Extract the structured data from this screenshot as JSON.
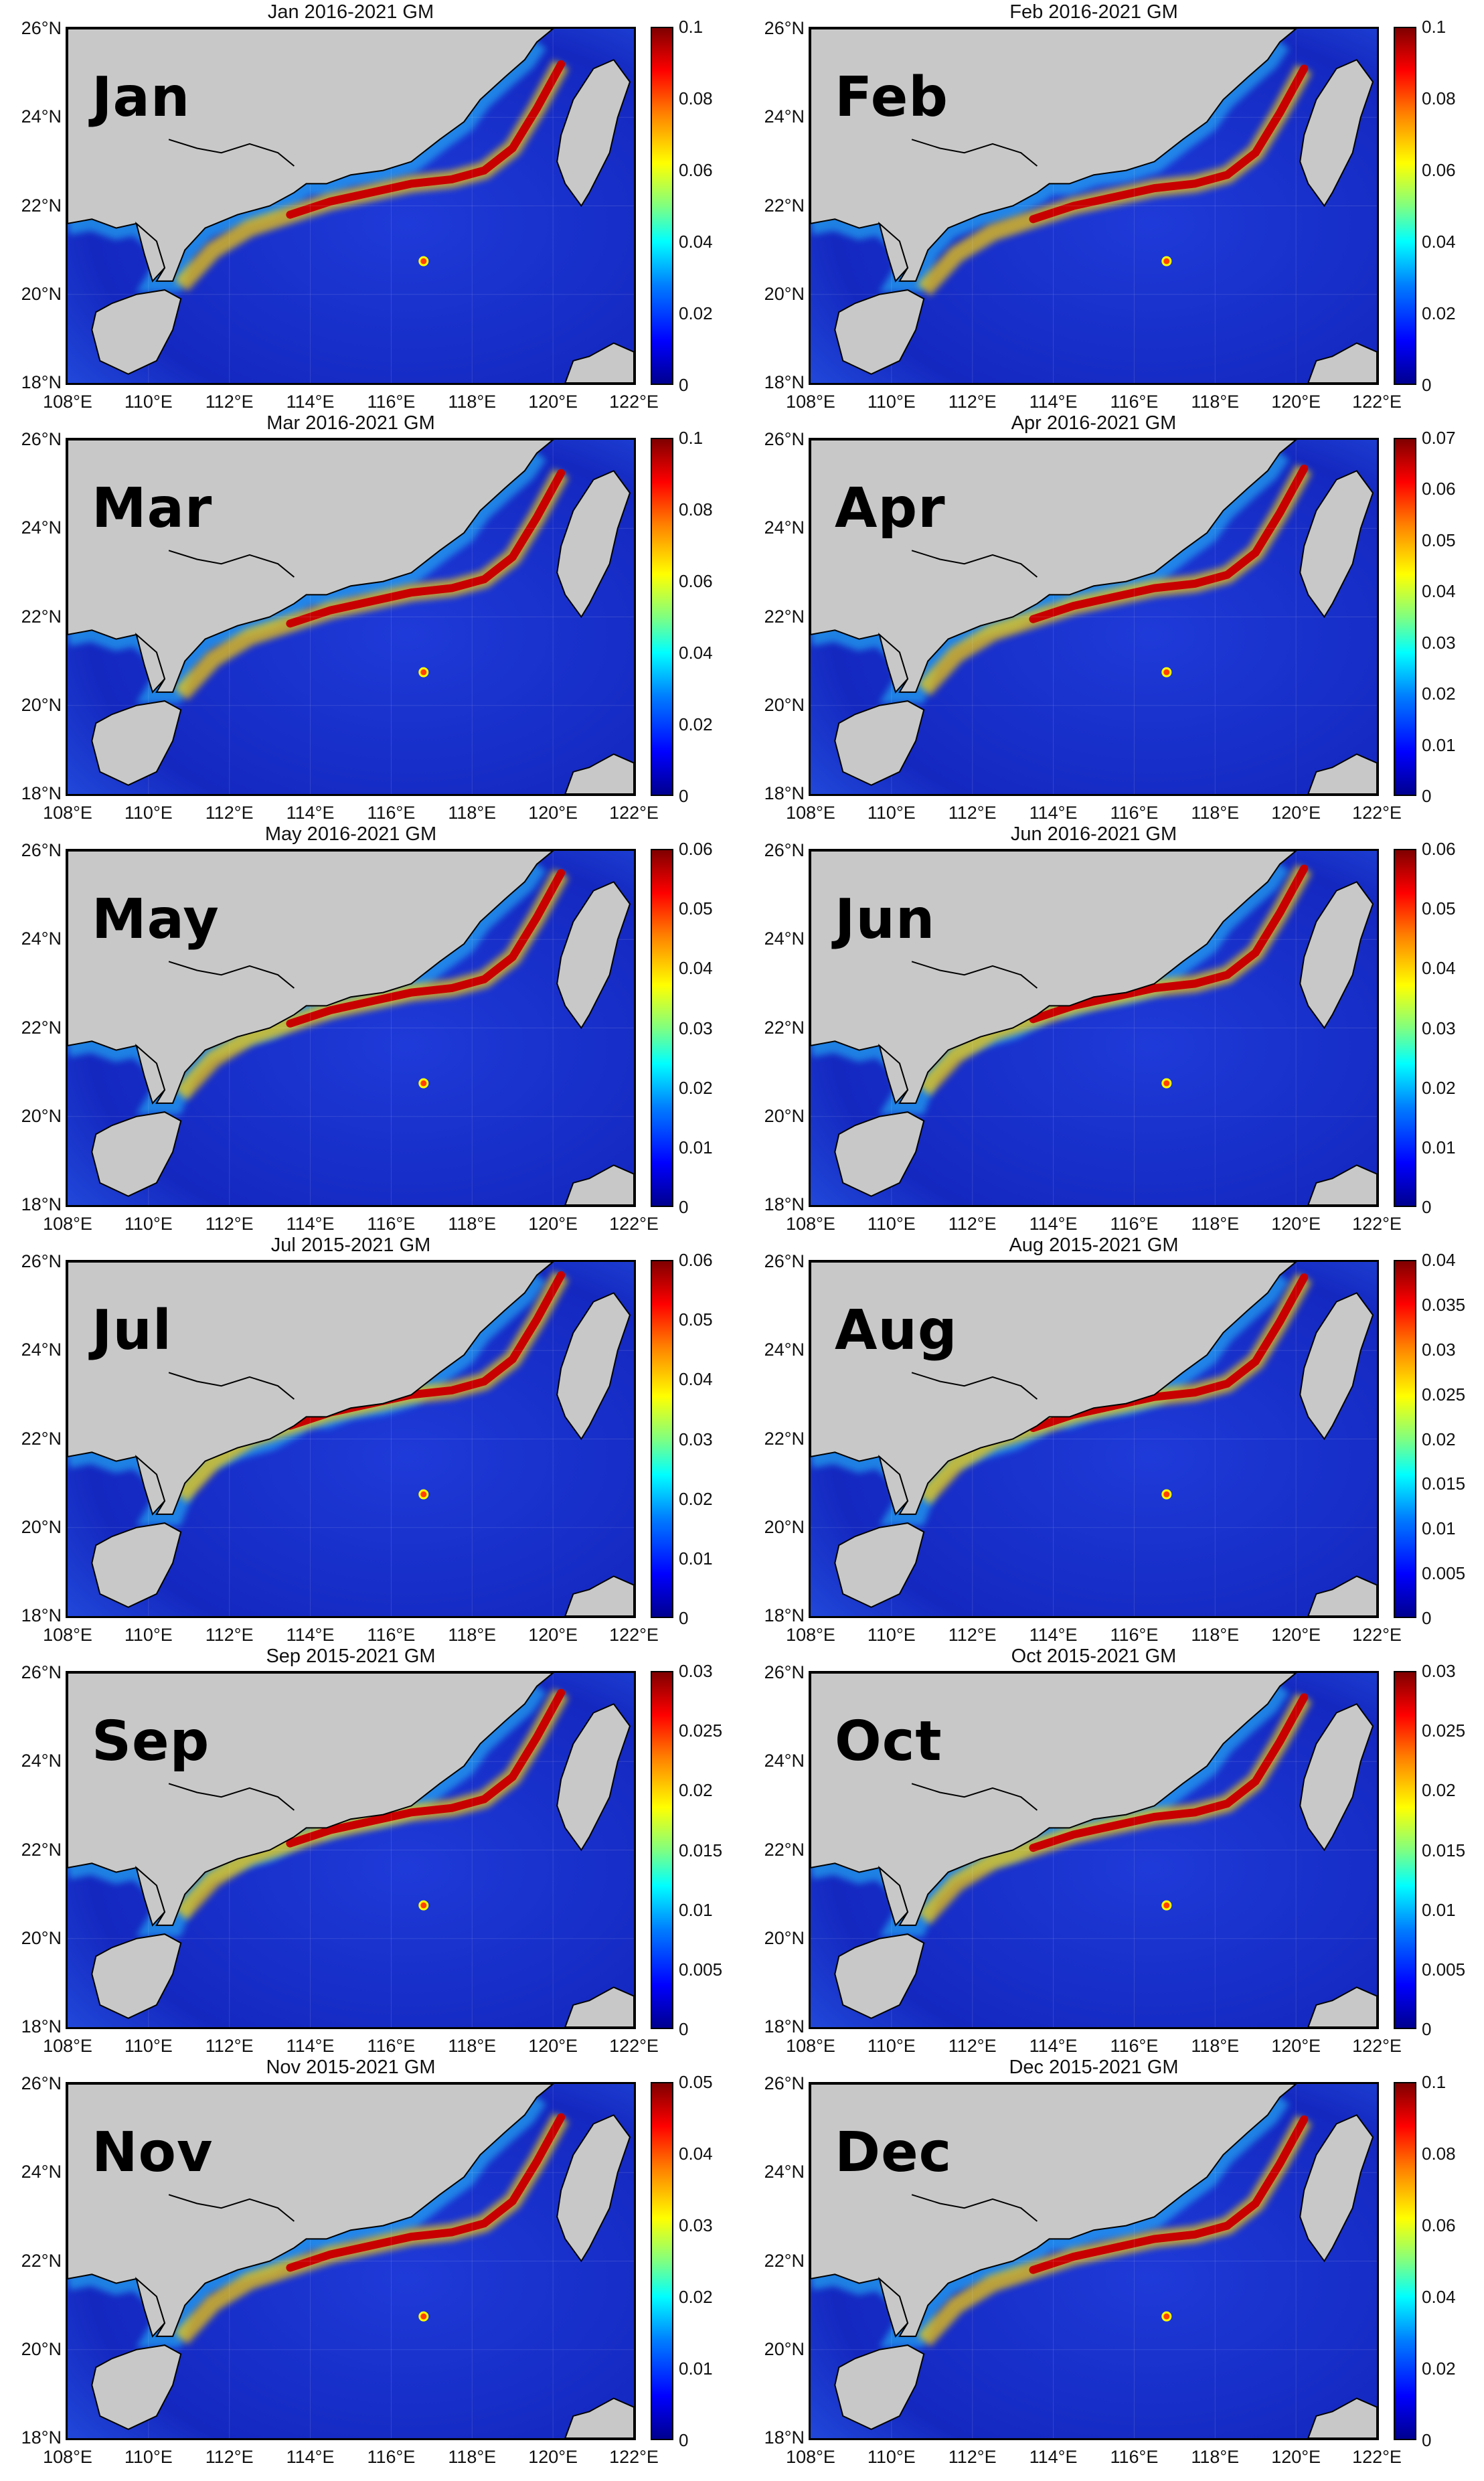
{
  "figure": {
    "panels": [
      {
        "title": "Jan 2016-2021 GM",
        "month": "Jan",
        "cbar_ticks": [
          "0.1",
          "0.08",
          "0.06",
          "0.04",
          "0.02",
          "0"
        ]
      },
      {
        "title": "Feb 2016-2021 GM",
        "month": "Feb",
        "cbar_ticks": [
          "0.1",
          "0.08",
          "0.06",
          "0.04",
          "0.02",
          "0"
        ]
      },
      {
        "title": "Mar 2016-2021 GM",
        "month": "Mar",
        "cbar_ticks": [
          "0.1",
          "0.08",
          "0.06",
          "0.04",
          "0.02",
          "0"
        ]
      },
      {
        "title": "Apr 2016-2021 GM",
        "month": "Apr",
        "cbar_ticks": [
          "0.07",
          "0.06",
          "0.05",
          "0.04",
          "0.03",
          "0.02",
          "0.01",
          "0"
        ]
      },
      {
        "title": "May 2016-2021 GM",
        "month": "May",
        "cbar_ticks": [
          "0.06",
          "0.05",
          "0.04",
          "0.03",
          "0.02",
          "0.01",
          "0"
        ]
      },
      {
        "title": "Jun 2016-2021 GM",
        "month": "Jun",
        "cbar_ticks": [
          "0.06",
          "0.05",
          "0.04",
          "0.03",
          "0.02",
          "0.01",
          "0"
        ]
      },
      {
        "title": "Jul 2015-2021 GM",
        "month": "Jul",
        "cbar_ticks": [
          "0.06",
          "0.05",
          "0.04",
          "0.03",
          "0.02",
          "0.01",
          "0"
        ]
      },
      {
        "title": "Aug 2015-2021 GM",
        "month": "Aug",
        "cbar_ticks": [
          "0.04",
          "0.035",
          "0.03",
          "0.025",
          "0.02",
          "0.015",
          "0.01",
          "0.005",
          "0"
        ]
      },
      {
        "title": "Sep 2015-2021 GM",
        "month": "Sep",
        "cbar_ticks": [
          "0.03",
          "0.025",
          "0.02",
          "0.015",
          "0.01",
          "0.005",
          "0"
        ]
      },
      {
        "title": "Oct 2015-2021 GM",
        "month": "Oct",
        "cbar_ticks": [
          "0.03",
          "0.025",
          "0.02",
          "0.015",
          "0.01",
          "0.005",
          "0"
        ]
      },
      {
        "title": "Nov 2015-2021 GM",
        "month": "Nov",
        "cbar_ticks": [
          "0.05",
          "0.04",
          "0.03",
          "0.02",
          "0.01",
          "0"
        ]
      },
      {
        "title": "Dec 2015-2021 GM",
        "month": "Dec",
        "cbar_ticks": [
          "0.1",
          "0.08",
          "0.06",
          "0.04",
          "0.02",
          "0"
        ]
      }
    ],
    "y_ticks": [
      "26°N",
      "24°N",
      "22°N",
      "20°N",
      "18°N"
    ],
    "x_ticks": [
      "108°E",
      "110°E",
      "112°E",
      "114°E",
      "116°E",
      "118°E",
      "120°E",
      "122°E"
    ],
    "colors": {
      "land": "#c8c8c8",
      "ocean_low": "#1428c8",
      "ocean_high": "#b40000",
      "coast": "#000000"
    }
  }
}
